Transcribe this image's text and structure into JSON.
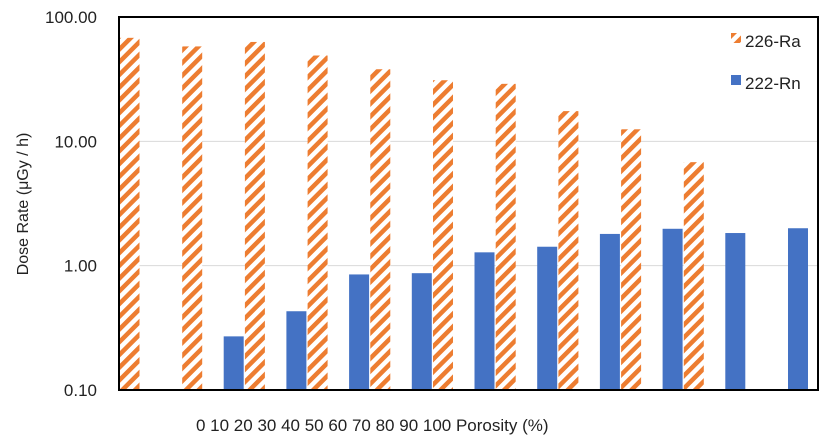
{
  "chart_data": {
    "type": "bar",
    "title": "",
    "xlabel": "0 10 20 30 40 50 60 70 80 90 100 Porosity (%)",
    "ylabel": "Dose Rate (μGy / h)",
    "yscale": "log",
    "ylim": [
      0.1,
      100
    ],
    "yticks": [
      "0.10",
      "1.00",
      "10.00",
      "100.00"
    ],
    "categories": [
      "0",
      "10",
      "20",
      "30",
      "40",
      "50",
      "60",
      "70",
      "80",
      "90",
      "100"
    ],
    "grid": true,
    "legend_position": "top-right",
    "series": [
      {
        "name": "226-Ra",
        "color": "#ED7D31",
        "pattern": "diagonal-stripes",
        "values": [
          68,
          58,
          63,
          49,
          38,
          31,
          29,
          17.5,
          12.5,
          6.8,
          null
        ]
      },
      {
        "name": "222-Rn",
        "color": "#4472C4",
        "pattern": "solid",
        "values": [
          null,
          0.27,
          0.43,
          0.85,
          0.87,
          1.28,
          1.42,
          1.8,
          1.98,
          1.83,
          2.0
        ]
      }
    ]
  }
}
